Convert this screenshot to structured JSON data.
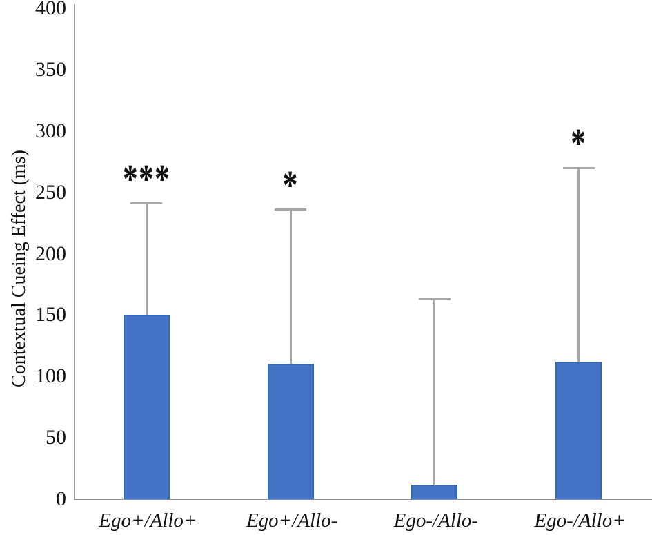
{
  "figure": {
    "background": "#ffffff",
    "bar_fill_color": "#4472C4",
    "bar_border_color": "#3565b5",
    "error_bar_color": "#a6a6a6",
    "axis_line_color": "#8f8f8f",
    "text_color": "#141414"
  },
  "chart_data": {
    "type": "bar",
    "title": "",
    "xlabel": "",
    "ylabel": "Contextual Cueing Effect (ms)",
    "ylim": [
      0,
      400
    ],
    "yticks": [
      0,
      50,
      100,
      150,
      200,
      250,
      300,
      350,
      400
    ],
    "categories": [
      "Ego+/Allo+",
      "Ego+/Allo-",
      "Ego-/Allo-",
      "Ego-/Allo+"
    ],
    "series": [
      {
        "name": "Contextual Cueing Effect",
        "values": [
          150,
          110,
          12,
          112
        ],
        "error_upper": [
          91,
          126,
          151,
          158
        ],
        "error_bar_tops": [
          241,
          236,
          163,
          270
        ]
      }
    ],
    "significance_markers": [
      "***",
      "*",
      "",
      "*"
    ],
    "grid": false,
    "legend_position": "none",
    "bar_color": "#4472C4"
  }
}
